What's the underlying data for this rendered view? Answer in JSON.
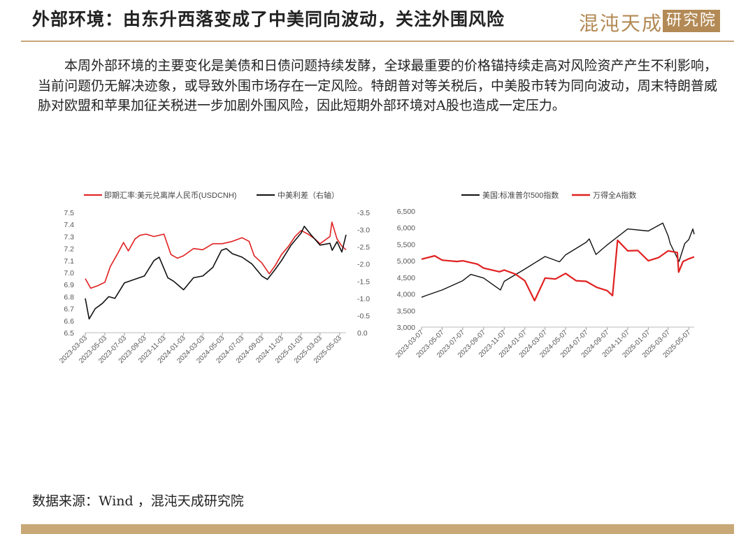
{
  "header": {
    "title": "外部环境：由东升西落变成了中美同向波动，关注外围风险",
    "logo_text": "混沌天成",
    "logo_box": "研究院"
  },
  "body": {
    "paragraph": "本周外部环境的主要变化是美债和日债问题持续发酵，全球最重要的价格锚持续走高对风险资产产生不利影响，当前问题仍无解决迹象，或导致外围市场存在一定风险。特朗普对等关税后，中美股市转为同向波动，周末特朗普威胁对欧盟和苹果加征关税进一步加剧外围风险，因此短期外部环境对A股也造成一定压力。"
  },
  "footer": {
    "source": "数据来源：Wind ，混沌天成研究院"
  },
  "colors": {
    "red": "#e02020",
    "black": "#111111",
    "gold": "#c9a878"
  },
  "chart_data": [
    {
      "type": "line",
      "x_ticks": [
        "2023-03-03",
        "2023-05-03",
        "2023-07-03",
        "2023-09-03",
        "2023-11-03",
        "2024-01-03",
        "2024-03-03",
        "2024-05-03",
        "2024-07-03",
        "2024-09-03",
        "2024-11-03",
        "2025-01-03",
        "2025-03-03",
        "2025-05-03"
      ],
      "x_range": [
        "2023-03-03",
        "2025-05-23"
      ],
      "left_axis": {
        "ticks": [
          "6.5",
          "6.6",
          "6.7",
          "6.8",
          "6.9",
          "7.0",
          "7.1",
          "7.2",
          "7.3",
          "7.4",
          "7.5"
        ],
        "ylim": [
          6.5,
          7.5
        ]
      },
      "right_axis": {
        "ticks": [
          "0.0",
          "-0.5",
          "-1.0",
          "-1.5",
          "-2.0",
          "-2.5",
          "-3.0",
          "-3.5"
        ],
        "ylim": [
          0.0,
          -3.5
        ]
      },
      "legend_position": "top",
      "series": [
        {
          "name": "即期汇率:美元兑离岸人民币(USDCNH)",
          "color": "#e02020",
          "axis": "left",
          "x": [
            "2023-03-03",
            "2023-03-20",
            "2023-04-10",
            "2023-05-03",
            "2023-05-20",
            "2023-06-10",
            "2023-06-30",
            "2023-07-15",
            "2023-08-05",
            "2023-08-20",
            "2023-09-08",
            "2023-10-03",
            "2023-11-03",
            "2023-11-25",
            "2023-12-15",
            "2024-01-03",
            "2024-02-03",
            "2024-03-03",
            "2024-04-03",
            "2024-05-03",
            "2024-06-03",
            "2024-07-03",
            "2024-07-25",
            "2024-08-10",
            "2024-09-03",
            "2024-09-26",
            "2024-10-15",
            "2024-11-03",
            "2024-11-25",
            "2024-12-15",
            "2025-01-03",
            "2025-01-25",
            "2025-02-15",
            "2025-03-03",
            "2025-04-03",
            "2025-04-09",
            "2025-04-25",
            "2025-05-10",
            "2025-05-23"
          ],
          "values": [
            6.95,
            6.87,
            6.89,
            6.92,
            7.05,
            7.15,
            7.25,
            7.18,
            7.28,
            7.31,
            7.32,
            7.3,
            7.32,
            7.15,
            7.12,
            7.14,
            7.2,
            7.19,
            7.24,
            7.24,
            7.26,
            7.29,
            7.26,
            7.14,
            7.08,
            6.99,
            7.06,
            7.15,
            7.22,
            7.3,
            7.35,
            7.32,
            7.28,
            7.24,
            7.3,
            7.42,
            7.28,
            7.22,
            7.19
          ]
        },
        {
          "name": "中美利差（右轴）",
          "color": "#111111",
          "axis": "right",
          "x": [
            "2023-03-03",
            "2023-03-15",
            "2023-04-03",
            "2023-04-25",
            "2023-05-15",
            "2023-06-03",
            "2023-07-03",
            "2023-08-03",
            "2023-09-03",
            "2023-10-03",
            "2023-10-19",
            "2023-11-15",
            "2023-12-03",
            "2024-01-03",
            "2024-02-03",
            "2024-03-03",
            "2024-04-03",
            "2024-04-30",
            "2024-05-15",
            "2024-06-03",
            "2024-07-03",
            "2024-08-03",
            "2024-09-03",
            "2024-09-20",
            "2024-10-15",
            "2024-11-03",
            "2024-12-03",
            "2025-01-03",
            "2025-01-13",
            "2025-02-03",
            "2025-03-03",
            "2025-04-03",
            "2025-04-10",
            "2025-04-25",
            "2025-05-10",
            "2025-05-23"
          ],
          "values": [
            -1.0,
            -0.4,
            -0.7,
            -0.85,
            -1.05,
            -1.0,
            -1.45,
            -1.55,
            -1.65,
            -2.1,
            -2.2,
            -1.6,
            -1.5,
            -1.25,
            -1.6,
            -1.65,
            -1.9,
            -2.4,
            -2.45,
            -2.3,
            -2.2,
            -2.0,
            -1.65,
            -1.55,
            -1.85,
            -2.1,
            -2.55,
            -2.9,
            -3.1,
            -2.85,
            -2.55,
            -2.6,
            -2.4,
            -2.65,
            -2.35,
            -2.85
          ]
        }
      ]
    },
    {
      "type": "line",
      "x_ticks": [
        "2023-03-07",
        "2023-05-07",
        "2023-07-07",
        "2023-09-07",
        "2023-11-07",
        "2024-01-07",
        "2024-03-07",
        "2024-05-07",
        "2024-07-07",
        "2024-09-07",
        "2024-11-07",
        "2025-01-07",
        "2025-03-07",
        "2025-05-07"
      ],
      "x_range": [
        "2023-03-07",
        "2025-05-23"
      ],
      "y_axis": {
        "ticks": [
          "3,000",
          "3,500",
          "4,000",
          "4,500",
          "5,000",
          "5,500",
          "6,000",
          "6,500"
        ],
        "ylim": [
          3000,
          6500
        ]
      },
      "legend_position": "top",
      "series": [
        {
          "name": "美国:标准普尔500指数",
          "color": "#111111",
          "x": [
            "2023-03-07",
            "2023-03-20",
            "2023-05-07",
            "2023-07-07",
            "2023-07-31",
            "2023-09-07",
            "2023-10-27",
            "2023-11-07",
            "2024-01-07",
            "2024-03-07",
            "2024-04-19",
            "2024-05-07",
            "2024-07-07",
            "2024-07-16",
            "2024-08-05",
            "2024-09-07",
            "2024-11-07",
            "2025-01-07",
            "2025-02-19",
            "2025-03-07",
            "2025-03-13",
            "2025-04-08",
            "2025-04-25",
            "2025-05-07",
            "2025-05-19",
            "2025-05-23"
          ],
          "values": [
            3900,
            3950,
            4120,
            4400,
            4590,
            4480,
            4120,
            4380,
            4750,
            5130,
            4970,
            5180,
            5560,
            5660,
            5190,
            5480,
            5960,
            5900,
            6140,
            5750,
            5520,
            4980,
            5520,
            5640,
            5960,
            5800
          ]
        },
        {
          "name": "万得全A指数",
          "color": "#e02020",
          "x": [
            "2023-03-07",
            "2023-04-15",
            "2023-05-07",
            "2023-06-20",
            "2023-07-07",
            "2023-08-20",
            "2023-09-07",
            "2023-10-24",
            "2023-11-07",
            "2023-12-10",
            "2024-01-07",
            "2024-02-05",
            "2024-03-07",
            "2024-04-07",
            "2024-05-07",
            "2024-06-07",
            "2024-07-07",
            "2024-08-07",
            "2024-09-07",
            "2024-09-23",
            "2024-10-08",
            "2024-11-07",
            "2024-12-07",
            "2025-01-07",
            "2025-02-07",
            "2025-03-07",
            "2025-04-03",
            "2025-04-07",
            "2025-04-20",
            "2025-05-07",
            "2025-05-23"
          ],
          "values": [
            5050,
            5150,
            5020,
            4980,
            5000,
            4900,
            4780,
            4670,
            4720,
            4600,
            4400,
            3800,
            4480,
            4450,
            4620,
            4400,
            4380,
            4200,
            4100,
            3950,
            5620,
            5300,
            5310,
            5000,
            5100,
            5300,
            5250,
            4660,
            4980,
            5060,
            5120
          ]
        }
      ]
    }
  ]
}
